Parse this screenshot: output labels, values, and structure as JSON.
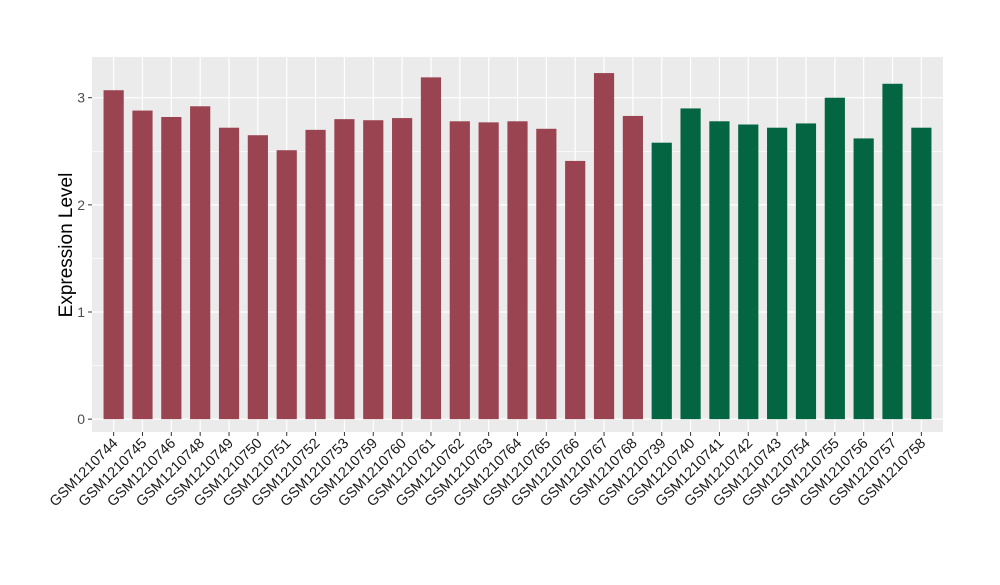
{
  "chart_data": {
    "type": "bar",
    "title": "",
    "xlabel": "",
    "ylabel": "Expression Level",
    "ylim": [
      -0.12,
      3.38
    ],
    "yticks": [
      0,
      1,
      2,
      3
    ],
    "grid": true,
    "legend": "none",
    "colors": {
      "group_a": "#9B4451",
      "group_b": "#046543",
      "panel_bg": "#EBEBEB",
      "grid": "#FFFFFF"
    },
    "categories": [
      "GSM1210744",
      "GSM1210745",
      "GSM1210746",
      "GSM1210748",
      "GSM1210749",
      "GSM1210750",
      "GSM1210751",
      "GSM1210752",
      "GSM1210753",
      "GSM1210759",
      "GSM1210760",
      "GSM1210761",
      "GSM1210762",
      "GSM1210763",
      "GSM1210764",
      "GSM1210765",
      "GSM1210766",
      "GSM1210767",
      "GSM1210768",
      "GSM1210739",
      "GSM1210740",
      "GSM1210741",
      "GSM1210742",
      "GSM1210743",
      "GSM1210754",
      "GSM1210755",
      "GSM1210756",
      "GSM1210757",
      "GSM1210758"
    ],
    "values": [
      3.07,
      2.88,
      2.82,
      2.92,
      2.72,
      2.65,
      2.51,
      2.7,
      2.8,
      2.79,
      2.81,
      3.19,
      2.78,
      2.77,
      2.78,
      2.71,
      2.41,
      3.23,
      2.83,
      2.58,
      2.9,
      2.78,
      2.75,
      2.72,
      2.76,
      3.0,
      2.62,
      3.13,
      2.72
    ],
    "groups": [
      "a",
      "a",
      "a",
      "a",
      "a",
      "a",
      "a",
      "a",
      "a",
      "a",
      "a",
      "a",
      "a",
      "a",
      "a",
      "a",
      "a",
      "a",
      "a",
      "b",
      "b",
      "b",
      "b",
      "b",
      "b",
      "b",
      "b",
      "b",
      "b"
    ]
  }
}
